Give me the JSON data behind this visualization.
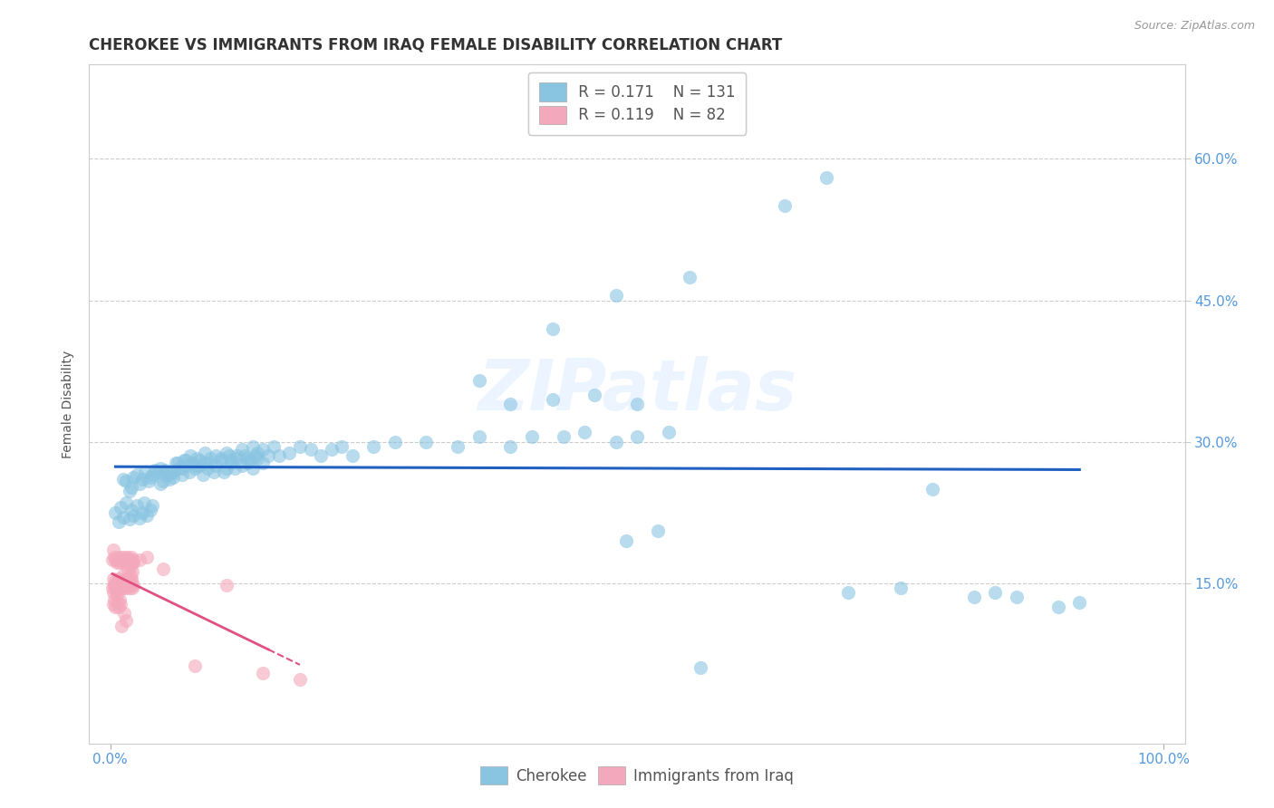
{
  "title": "CHEROKEE VS IMMIGRANTS FROM IRAQ FEMALE DISABILITY CORRELATION CHART",
  "source": "Source: ZipAtlas.com",
  "ylabel": "Female Disability",
  "xlim": [
    -0.02,
    1.02
  ],
  "ylim": [
    -0.02,
    0.7
  ],
  "ytick_vals": [
    0.15,
    0.3,
    0.45,
    0.6
  ],
  "ytick_labels": [
    "15.0%",
    "30.0%",
    "45.0%",
    "60.0%"
  ],
  "xtick_vals": [
    0.0,
    1.0
  ],
  "xtick_labels": [
    "0.0%",
    "100.0%"
  ],
  "legend_r1": "R = 0.171",
  "legend_n1": "N = 131",
  "legend_r2": "R = 0.119",
  "legend_n2": "N = 82",
  "cherokee_color": "#89c4e1",
  "iraq_color": "#f4a8bc",
  "trendline_cherokee_color": "#2060c0",
  "trendline_iraq_color": "#e05080",
  "tick_label_color": "#5599dd",
  "background_color": "#ffffff",
  "watermark": "ZIPatlas",
  "title_fontsize": 12,
  "axis_label_fontsize": 10,
  "tick_fontsize": 11,
  "legend_fontsize": 12,
  "cherokee_points_x": [
    0.005,
    0.008,
    0.01,
    0.012,
    0.015,
    0.018,
    0.02,
    0.022,
    0.025,
    0.028,
    0.03,
    0.032,
    0.035,
    0.038,
    0.04,
    0.012,
    0.015,
    0.018,
    0.02,
    0.022,
    0.025,
    0.028,
    0.03,
    0.033,
    0.036,
    0.038,
    0.04,
    0.042,
    0.045,
    0.048,
    0.05,
    0.052,
    0.055,
    0.058,
    0.06,
    0.062,
    0.065,
    0.068,
    0.07,
    0.072,
    0.075,
    0.078,
    0.08,
    0.082,
    0.085,
    0.088,
    0.09,
    0.092,
    0.095,
    0.098,
    0.1,
    0.105,
    0.108,
    0.11,
    0.113,
    0.115,
    0.118,
    0.12,
    0.125,
    0.128,
    0.13,
    0.133,
    0.135,
    0.138,
    0.14,
    0.145,
    0.048,
    0.052,
    0.056,
    0.06,
    0.064,
    0.068,
    0.072,
    0.076,
    0.08,
    0.085,
    0.09,
    0.095,
    0.1,
    0.105,
    0.11,
    0.115,
    0.12,
    0.125,
    0.13,
    0.135,
    0.14,
    0.145,
    0.15,
    0.155,
    0.16,
    0.17,
    0.18,
    0.19,
    0.2,
    0.21,
    0.22,
    0.23,
    0.25,
    0.27,
    0.3,
    0.33,
    0.35,
    0.38,
    0.4,
    0.43,
    0.45,
    0.48,
    0.5,
    0.53,
    0.42,
    0.46,
    0.5,
    0.55,
    0.38,
    0.35,
    0.42,
    0.48,
    0.82,
    0.86,
    0.9,
    0.92,
    0.78,
    0.84,
    0.7,
    0.75,
    0.64,
    0.68,
    0.49,
    0.52,
    0.56
  ],
  "cherokee_points_y": [
    0.225,
    0.215,
    0.23,
    0.22,
    0.235,
    0.218,
    0.228,
    0.222,
    0.232,
    0.219,
    0.225,
    0.235,
    0.222,
    0.228,
    0.232,
    0.26,
    0.258,
    0.248,
    0.252,
    0.262,
    0.265,
    0.255,
    0.26,
    0.268,
    0.258,
    0.262,
    0.265,
    0.27,
    0.268,
    0.272,
    0.258,
    0.27,
    0.265,
    0.268,
    0.262,
    0.278,
    0.272,
    0.265,
    0.28,
    0.275,
    0.268,
    0.278,
    0.272,
    0.282,
    0.275,
    0.265,
    0.278,
    0.272,
    0.282,
    0.268,
    0.275,
    0.28,
    0.268,
    0.272,
    0.285,
    0.278,
    0.272,
    0.282,
    0.275,
    0.285,
    0.278,
    0.28,
    0.272,
    0.285,
    0.282,
    0.278,
    0.255,
    0.265,
    0.26,
    0.268,
    0.278,
    0.272,
    0.28,
    0.285,
    0.275,
    0.28,
    0.288,
    0.278,
    0.285,
    0.282,
    0.288,
    0.28,
    0.285,
    0.292,
    0.282,
    0.295,
    0.288,
    0.292,
    0.285,
    0.295,
    0.285,
    0.288,
    0.295,
    0.292,
    0.285,
    0.292,
    0.295,
    0.285,
    0.295,
    0.3,
    0.3,
    0.295,
    0.305,
    0.295,
    0.305,
    0.305,
    0.31,
    0.3,
    0.305,
    0.31,
    0.345,
    0.35,
    0.34,
    0.475,
    0.34,
    0.365,
    0.42,
    0.455,
    0.135,
    0.135,
    0.125,
    0.13,
    0.25,
    0.14,
    0.14,
    0.145,
    0.55,
    0.58,
    0.195,
    0.205,
    0.06
  ],
  "iraq_points_x": [
    0.002,
    0.002,
    0.003,
    0.003,
    0.004,
    0.004,
    0.005,
    0.005,
    0.006,
    0.006,
    0.007,
    0.007,
    0.008,
    0.008,
    0.009,
    0.009,
    0.01,
    0.01,
    0.011,
    0.011,
    0.012,
    0.012,
    0.013,
    0.013,
    0.014,
    0.014,
    0.015,
    0.015,
    0.016,
    0.016,
    0.017,
    0.017,
    0.018,
    0.018,
    0.019,
    0.019,
    0.02,
    0.02,
    0.021,
    0.021,
    0.022,
    0.022,
    0.003,
    0.004,
    0.005,
    0.006,
    0.007,
    0.008,
    0.009,
    0.01,
    0.011,
    0.012,
    0.013,
    0.014,
    0.015,
    0.016,
    0.017,
    0.018,
    0.019,
    0.02,
    0.021,
    0.003,
    0.004,
    0.005,
    0.006,
    0.007,
    0.008,
    0.009,
    0.01,
    0.011,
    0.013,
    0.015,
    0.017,
    0.019,
    0.022,
    0.028,
    0.035,
    0.05,
    0.08,
    0.11,
    0.145,
    0.18
  ],
  "iraq_points_y": [
    0.145,
    0.175,
    0.155,
    0.185,
    0.148,
    0.178,
    0.152,
    0.175,
    0.145,
    0.172,
    0.148,
    0.175,
    0.152,
    0.178,
    0.145,
    0.172,
    0.148,
    0.175,
    0.152,
    0.178,
    0.145,
    0.172,
    0.148,
    0.175,
    0.152,
    0.178,
    0.145,
    0.172,
    0.148,
    0.175,
    0.152,
    0.178,
    0.145,
    0.172,
    0.148,
    0.175,
    0.152,
    0.178,
    0.145,
    0.172,
    0.148,
    0.175,
    0.14,
    0.148,
    0.145,
    0.15,
    0.142,
    0.155,
    0.148,
    0.152,
    0.145,
    0.158,
    0.148,
    0.152,
    0.155,
    0.148,
    0.155,
    0.152,
    0.158,
    0.155,
    0.162,
    0.128,
    0.132,
    0.125,
    0.138,
    0.13,
    0.125,
    0.132,
    0.128,
    0.105,
    0.118,
    0.11,
    0.165,
    0.168,
    0.172,
    0.175,
    0.178,
    0.165,
    0.062,
    0.148,
    0.055,
    0.048
  ]
}
